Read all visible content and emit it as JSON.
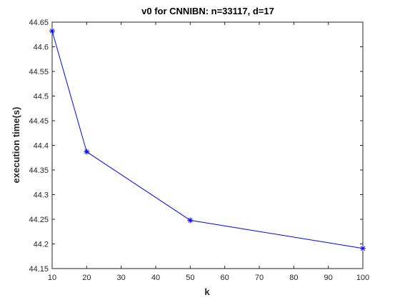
{
  "chart_data": {
    "type": "line",
    "title": "v0 for CNNIBN: n=33117, d=17",
    "xlabel": "k",
    "ylabel": "execution time(s)",
    "xlim": [
      10,
      100
    ],
    "ylim": [
      44.15,
      44.65
    ],
    "xticks": [
      10,
      20,
      30,
      40,
      50,
      60,
      70,
      80,
      90,
      100
    ],
    "yticks": [
      44.15,
      44.2,
      44.25,
      44.3,
      44.35,
      44.4,
      44.45,
      44.5,
      44.55,
      44.6,
      44.65
    ],
    "xtick_labels": [
      "10",
      "20",
      "30",
      "40",
      "50",
      "60",
      "70",
      "80",
      "90",
      "100"
    ],
    "ytick_labels": [
      "44.15",
      "44.2",
      "44.25",
      "44.3",
      "44.35",
      "44.4",
      "44.45",
      "44.5",
      "44.55",
      "44.6",
      "44.65"
    ],
    "grid": false,
    "legend": "none",
    "series": [
      {
        "x": [
          10,
          20,
          50,
          100
        ],
        "values": [
          44.632,
          44.387,
          44.248,
          44.191
        ],
        "color": "#0000ff",
        "marker": "asterisk"
      }
    ]
  }
}
